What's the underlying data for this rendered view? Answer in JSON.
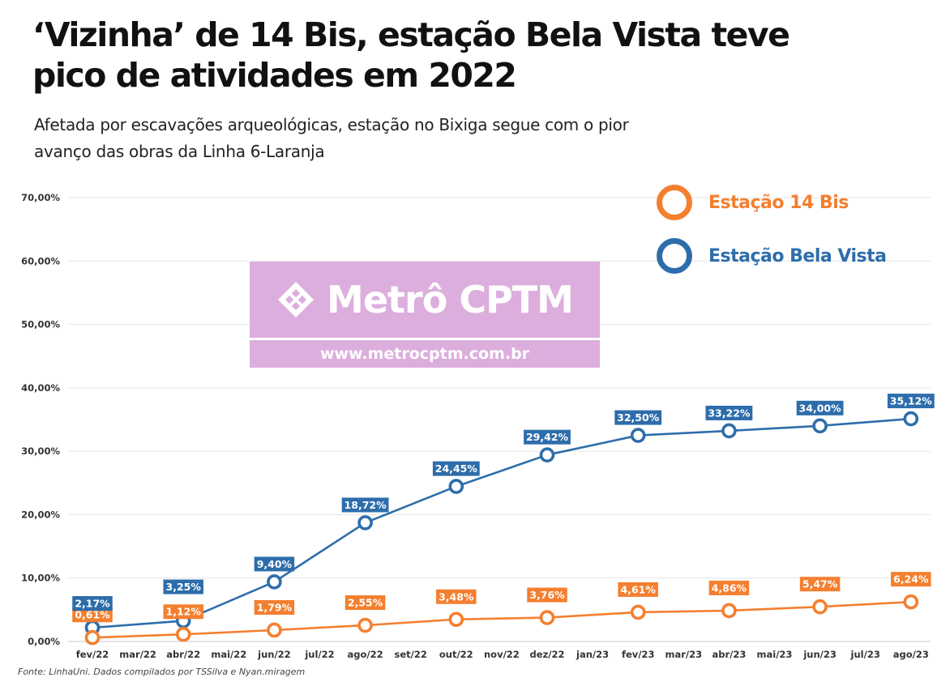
{
  "header": {
    "title": "‘Vizinha’ de 14 Bis, estação Bela Vista teve pico de atividades em 2022",
    "subtitle": "Afetada por escavações arqueológicas, estação no Bixiga segue com o pior avanço das obras da Linha 6-Laranja"
  },
  "watermark": {
    "brand": "Metrô CPTM",
    "url": "www.metrocptm.com.br"
  },
  "source": "Fonte: LinhaUni. Dados compilados por TSSilva e Nyan.miragem",
  "colors": {
    "orange": "#f47f2f",
    "blue": "#2e6dab"
  },
  "chart_data": {
    "type": "line",
    "categories": [
      "fev/22",
      "mar/22",
      "abr/22",
      "mai/22",
      "jun/22",
      "jul/22",
      "ago/22",
      "set/22",
      "out/22",
      "nov/22",
      "dez/22",
      "jan/23",
      "fev/23",
      "mar/23",
      "abr/23",
      "mai/23",
      "jun/23",
      "jul/23",
      "ago/23"
    ],
    "y_ticks": [
      "0,00%",
      "10,00%",
      "20,00%",
      "30,00%",
      "40,00%",
      "50,00%",
      "60,00%",
      "70,00%"
    ],
    "ylim": [
      0,
      70
    ],
    "grid": true,
    "legend_position": "top-right",
    "series": [
      {
        "name": "Estação 14 Bis",
        "color": "#f47f2f",
        "points": [
          {
            "x": "fev/22",
            "y": 0.61,
            "label": "0,61%"
          },
          {
            "x": "abr/22",
            "y": 1.12,
            "label": "1,12%"
          },
          {
            "x": "jun/22",
            "y": 1.79,
            "label": "1,79%"
          },
          {
            "x": "ago/22",
            "y": 2.55,
            "label": "2,55%"
          },
          {
            "x": "out/22",
            "y": 3.48,
            "label": "3,48%"
          },
          {
            "x": "dez/22",
            "y": 3.76,
            "label": "3,76%"
          },
          {
            "x": "fev/23",
            "y": 4.61,
            "label": "4,61%"
          },
          {
            "x": "abr/23",
            "y": 4.86,
            "label": "4,86%"
          },
          {
            "x": "jun/23",
            "y": 5.47,
            "label": "5,47%"
          },
          {
            "x": "ago/23",
            "y": 6.24,
            "label": "6,24%"
          }
        ]
      },
      {
        "name": "Estação Bela Vista",
        "color": "#2e6dab",
        "points": [
          {
            "x": "fev/22",
            "y": 2.17,
            "label": "2,17%"
          },
          {
            "x": "abr/22",
            "y": 3.25,
            "label": "3,25%"
          },
          {
            "x": "jun/22",
            "y": 9.4,
            "label": "9,40%"
          },
          {
            "x": "ago/22",
            "y": 18.72,
            "label": "18,72%"
          },
          {
            "x": "out/22",
            "y": 24.45,
            "label": "24,45%"
          },
          {
            "x": "dez/22",
            "y": 29.42,
            "label": "29,42%"
          },
          {
            "x": "fev/23",
            "y": 32.5,
            "label": "32,50%"
          },
          {
            "x": "abr/23",
            "y": 33.22,
            "label": "33,22%"
          },
          {
            "x": "jun/23",
            "y": 34.0,
            "label": "34,00%"
          },
          {
            "x": "ago/23",
            "y": 35.12,
            "label": "35,12%"
          }
        ]
      }
    ]
  }
}
